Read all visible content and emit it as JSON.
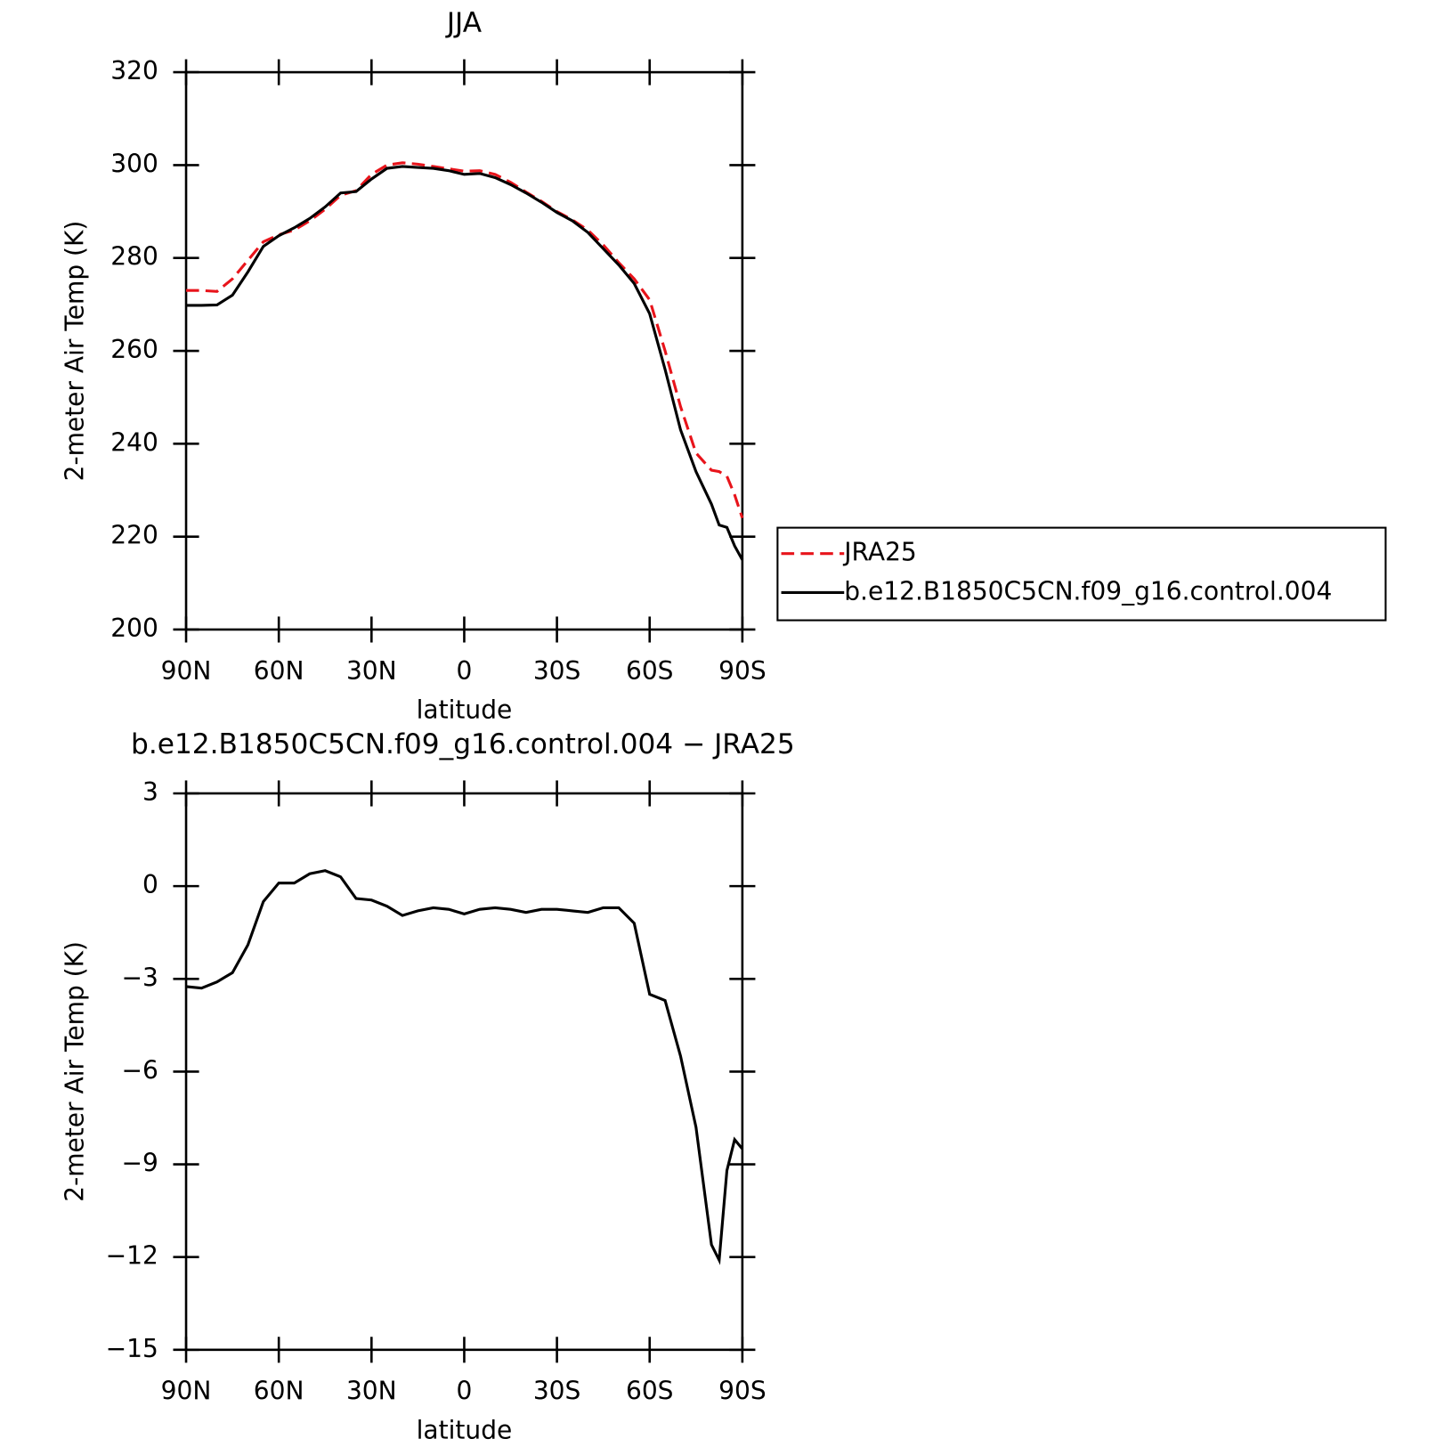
{
  "chart_data": [
    {
      "type": "line",
      "title": "JJA",
      "xlabel": "latitude",
      "ylabel": "2-meter Air Temp (K)",
      "x": [
        90,
        85,
        80,
        75,
        70,
        65,
        60,
        55,
        50,
        45,
        40,
        35,
        30,
        25,
        20,
        15,
        10,
        5,
        0,
        -5,
        -10,
        -15,
        -20,
        -25,
        -30,
        -35,
        -40,
        -45,
        -50,
        -55,
        -60,
        -65,
        -70,
        -75,
        -80,
        -82.5,
        -85,
        -87.5,
        -90
      ],
      "xlim": [
        90,
        -90
      ],
      "xticks": [
        {
          "value": 90,
          "label": "90N"
        },
        {
          "value": 60,
          "label": "60N"
        },
        {
          "value": 30,
          "label": "30N"
        },
        0,
        {
          "value": -30,
          "label": "30S"
        },
        {
          "value": -60,
          "label": "60S"
        },
        {
          "value": -90,
          "label": "90S"
        }
      ],
      "ylim": [
        200,
        320
      ],
      "yticks": [
        200,
        220,
        240,
        260,
        280,
        300,
        320
      ],
      "legend": "right",
      "series": [
        {
          "name": "JRA25",
          "color": "#e8141b",
          "dashed": true,
          "values": [
            273,
            273,
            272.8,
            275.5,
            279.5,
            283.5,
            285,
            286,
            288,
            290.5,
            293.5,
            294.5,
            298,
            300,
            300.5,
            300.2,
            299.7,
            299.2,
            298.7,
            298.8,
            298,
            296.3,
            294.2,
            292.2,
            290,
            288.2,
            286,
            282.8,
            279,
            275.5,
            271,
            260,
            248,
            238,
            234.3,
            234,
            233,
            229,
            224
          ]
        },
        {
          "name": "b.e12.B1850C5CN.f09_g16.control.004",
          "color": "#000000",
          "dashed": false,
          "values": [
            269.8,
            269.8,
            269.9,
            272,
            277,
            282.5,
            284.8,
            286.5,
            288.5,
            291,
            294,
            294.3,
            297,
            299.3,
            299.7,
            299.5,
            299.3,
            298.8,
            298,
            298.2,
            297.3,
            295.8,
            294,
            292,
            289.8,
            288,
            285.5,
            282,
            278.5,
            274.5,
            268,
            256,
            243,
            234,
            227,
            222.5,
            222,
            218,
            215
          ]
        }
      ]
    },
    {
      "type": "line",
      "title": "b.e12.B1850C5CN.f09_g16.control.004 − JRA25",
      "xlabel": "latitude",
      "ylabel": "2-meter Air Temp (K)",
      "x": [
        90,
        85,
        80,
        75,
        70,
        65,
        60,
        55,
        50,
        45,
        40,
        35,
        30,
        25,
        20,
        15,
        10,
        5,
        0,
        -5,
        -10,
        -15,
        -20,
        -25,
        -30,
        -35,
        -40,
        -45,
        -50,
        -55,
        -60,
        -65,
        -70,
        -75,
        -80,
        -82.5,
        -85,
        -87.5,
        -90
      ],
      "xlim": [
        90,
        -90
      ],
      "xticks": [
        {
          "value": 90,
          "label": "90N"
        },
        {
          "value": 60,
          "label": "60N"
        },
        {
          "value": 30,
          "label": "30N"
        },
        0,
        {
          "value": -30,
          "label": "30S"
        },
        {
          "value": -60,
          "label": "60S"
        },
        {
          "value": -90,
          "label": "90S"
        }
      ],
      "ylim": [
        -15,
        3
      ],
      "yticks": [
        {
          "value": -15,
          "label": "−15"
        },
        {
          "value": -12,
          "label": "−12"
        },
        {
          "value": -9,
          "label": "−9"
        },
        {
          "value": -6,
          "label": "−6"
        },
        {
          "value": -3,
          "label": "−3"
        },
        0,
        3
      ],
      "series": [
        {
          "color": "#000000",
          "dashed": false,
          "values": [
            -3.25,
            -3.3,
            -3.1,
            -2.8,
            -1.9,
            -0.5,
            0.1,
            0.1,
            0.4,
            0.5,
            0.3,
            -0.4,
            -0.45,
            -0.65,
            -0.95,
            -0.8,
            -0.7,
            -0.75,
            -0.9,
            -0.75,
            -0.7,
            -0.75,
            -0.85,
            -0.75,
            -0.75,
            -0.8,
            -0.85,
            -0.7,
            -0.7,
            -1.2,
            -3.5,
            -3.7,
            -5.5,
            -7.8,
            -11.6,
            -12.1,
            -9.2,
            -8.2,
            -8.5
          ]
        }
      ]
    }
  ]
}
